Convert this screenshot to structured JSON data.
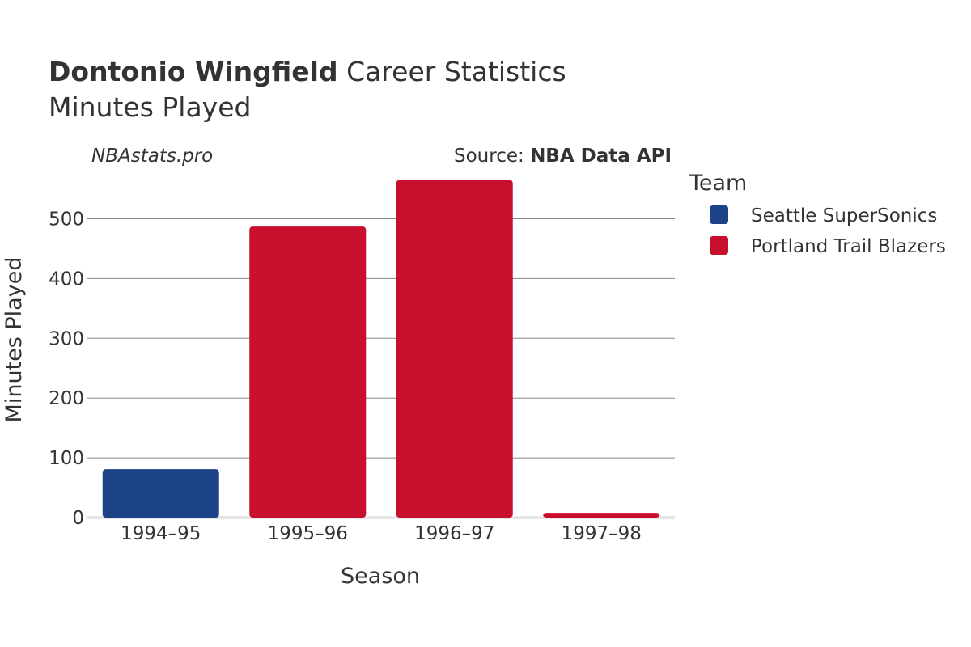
{
  "header": {
    "player_name": "Dontonio Wingfield",
    "title_rest": " Career Statistics",
    "subtitle": "Minutes Played"
  },
  "watermark": "NBAstats.pro",
  "source": {
    "prefix": "Source: ",
    "name": "NBA Data API"
  },
  "legend": {
    "title": "Team",
    "placement": "right",
    "items": [
      {
        "label": "Seattle SuperSonics",
        "color": "#1c4288"
      },
      {
        "label": "Portland Trail Blazers",
        "color": "#c8102e"
      }
    ]
  },
  "chart_data": {
    "type": "bar",
    "title": "Dontonio Wingfield Career Statistics",
    "subtitle": "Minutes Played",
    "xlabel": "Season",
    "ylabel": "Minutes Played",
    "categories": [
      "1994–95",
      "1995–96",
      "1996–97",
      "1997–98"
    ],
    "values": [
      81,
      487,
      565,
      8
    ],
    "teams": [
      "Seattle SuperSonics",
      "Portland Trail Blazers",
      "Portland Trail Blazers",
      "Portland Trail Blazers"
    ],
    "colors": [
      "#1c4288",
      "#c8102e",
      "#c8102e",
      "#c8102e"
    ],
    "yticks": [
      0,
      100,
      200,
      300,
      400,
      500
    ],
    "ylim": [
      0,
      570
    ],
    "grid": true
  }
}
